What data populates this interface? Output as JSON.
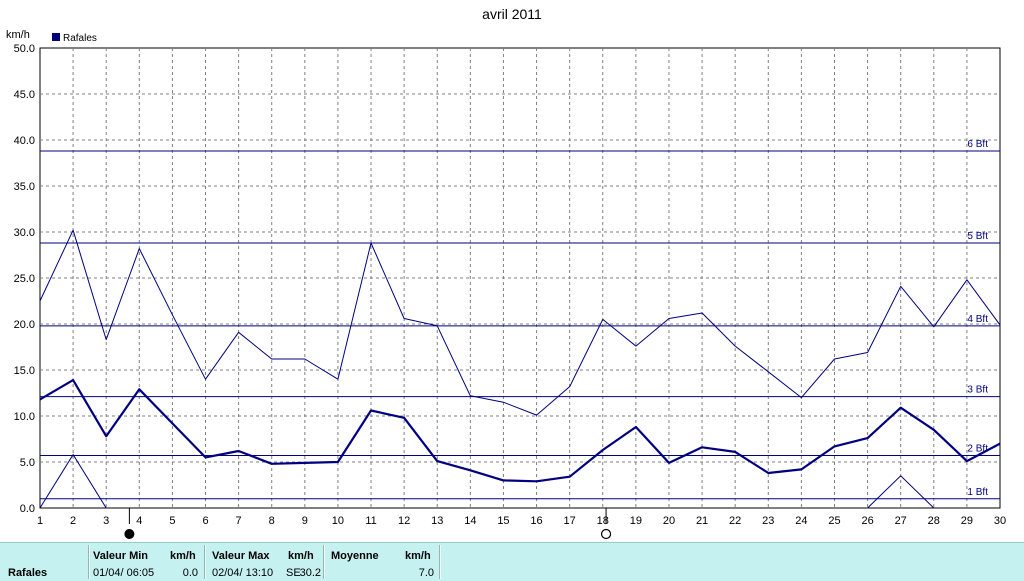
{
  "chart_data": {
    "type": "line",
    "title": "avril 2011",
    "ylabel": "km/h",
    "ylim": [
      0,
      50
    ],
    "yticks": [
      "0.0",
      "5.0",
      "10.0",
      "15.0",
      "20.0",
      "25.0",
      "30.0",
      "35.0",
      "40.0",
      "45.0",
      "50.0"
    ],
    "x": [
      1,
      2,
      3,
      4,
      5,
      6,
      7,
      8,
      9,
      10,
      11,
      12,
      13,
      14,
      15,
      16,
      17,
      18,
      19,
      20,
      21,
      22,
      23,
      24,
      25,
      26,
      27,
      28,
      29,
      30
    ],
    "legend": {
      "label": "Rafales",
      "color": "#000080",
      "position": "top-left"
    },
    "grid": true,
    "series": [
      {
        "name": "Rafales",
        "role": "max",
        "values": [
          22.5,
          30.2,
          18.3,
          28.2,
          21.0,
          14.0,
          19.1,
          16.2,
          16.2,
          14.0,
          28.8,
          20.6,
          19.8,
          12.2,
          11.5,
          10.1,
          13.2,
          20.5,
          17.6,
          20.6,
          21.2,
          17.6,
          14.8,
          12.0,
          16.2,
          16.9,
          24.1,
          19.7,
          24.8,
          19.9
        ]
      },
      {
        "name": "Rafales",
        "role": "mean",
        "values": [
          11.8,
          13.9,
          7.8,
          12.9,
          9.2,
          5.5,
          6.2,
          4.8,
          4.9,
          5.0,
          10.6,
          9.8,
          5.1,
          4.1,
          3.0,
          2.9,
          3.4,
          6.3,
          8.8,
          4.9,
          6.6,
          6.1,
          3.8,
          4.2,
          6.7,
          7.6,
          10.9,
          8.5,
          5.1,
          7.0
        ]
      },
      {
        "name": "Rafales",
        "role": "min",
        "segments": [
          {
            "x": [
              1,
              2,
              3
            ],
            "values": [
              0,
              5.8,
              0
            ]
          },
          {
            "x": [
              26,
              27,
              28
            ],
            "values": [
              0,
              3.5,
              0
            ]
          }
        ]
      }
    ],
    "beaufort": [
      {
        "label": "1 Bft",
        "value": 1.0
      },
      {
        "label": "2 Bft",
        "value": 5.7
      },
      {
        "label": "3 Bft",
        "value": 12.1
      },
      {
        "label": "4 Bft",
        "value": 19.8
      },
      {
        "label": "5 Bft",
        "value": 28.8
      },
      {
        "label": "6 Bft",
        "value": 38.8
      }
    ],
    "moon_phases": [
      {
        "day": 3.7,
        "phase": "new-moon"
      },
      {
        "day": 18.1,
        "phase": "full-moon"
      }
    ]
  },
  "panel": {
    "row_label": "Rafales",
    "min": {
      "header": "Valeur Min",
      "unit": "km/h",
      "datetime": "01/04/  06:05",
      "value": "0.0"
    },
    "max": {
      "header": "Valeur Max",
      "unit": "km/h",
      "datetime": "02/04/  13:10",
      "dir": "SE",
      "value": "30.2"
    },
    "avg": {
      "header": "Moyenne",
      "unit": "km/h",
      "value": "7.0"
    },
    "bg_color": "#c6f1f1"
  }
}
